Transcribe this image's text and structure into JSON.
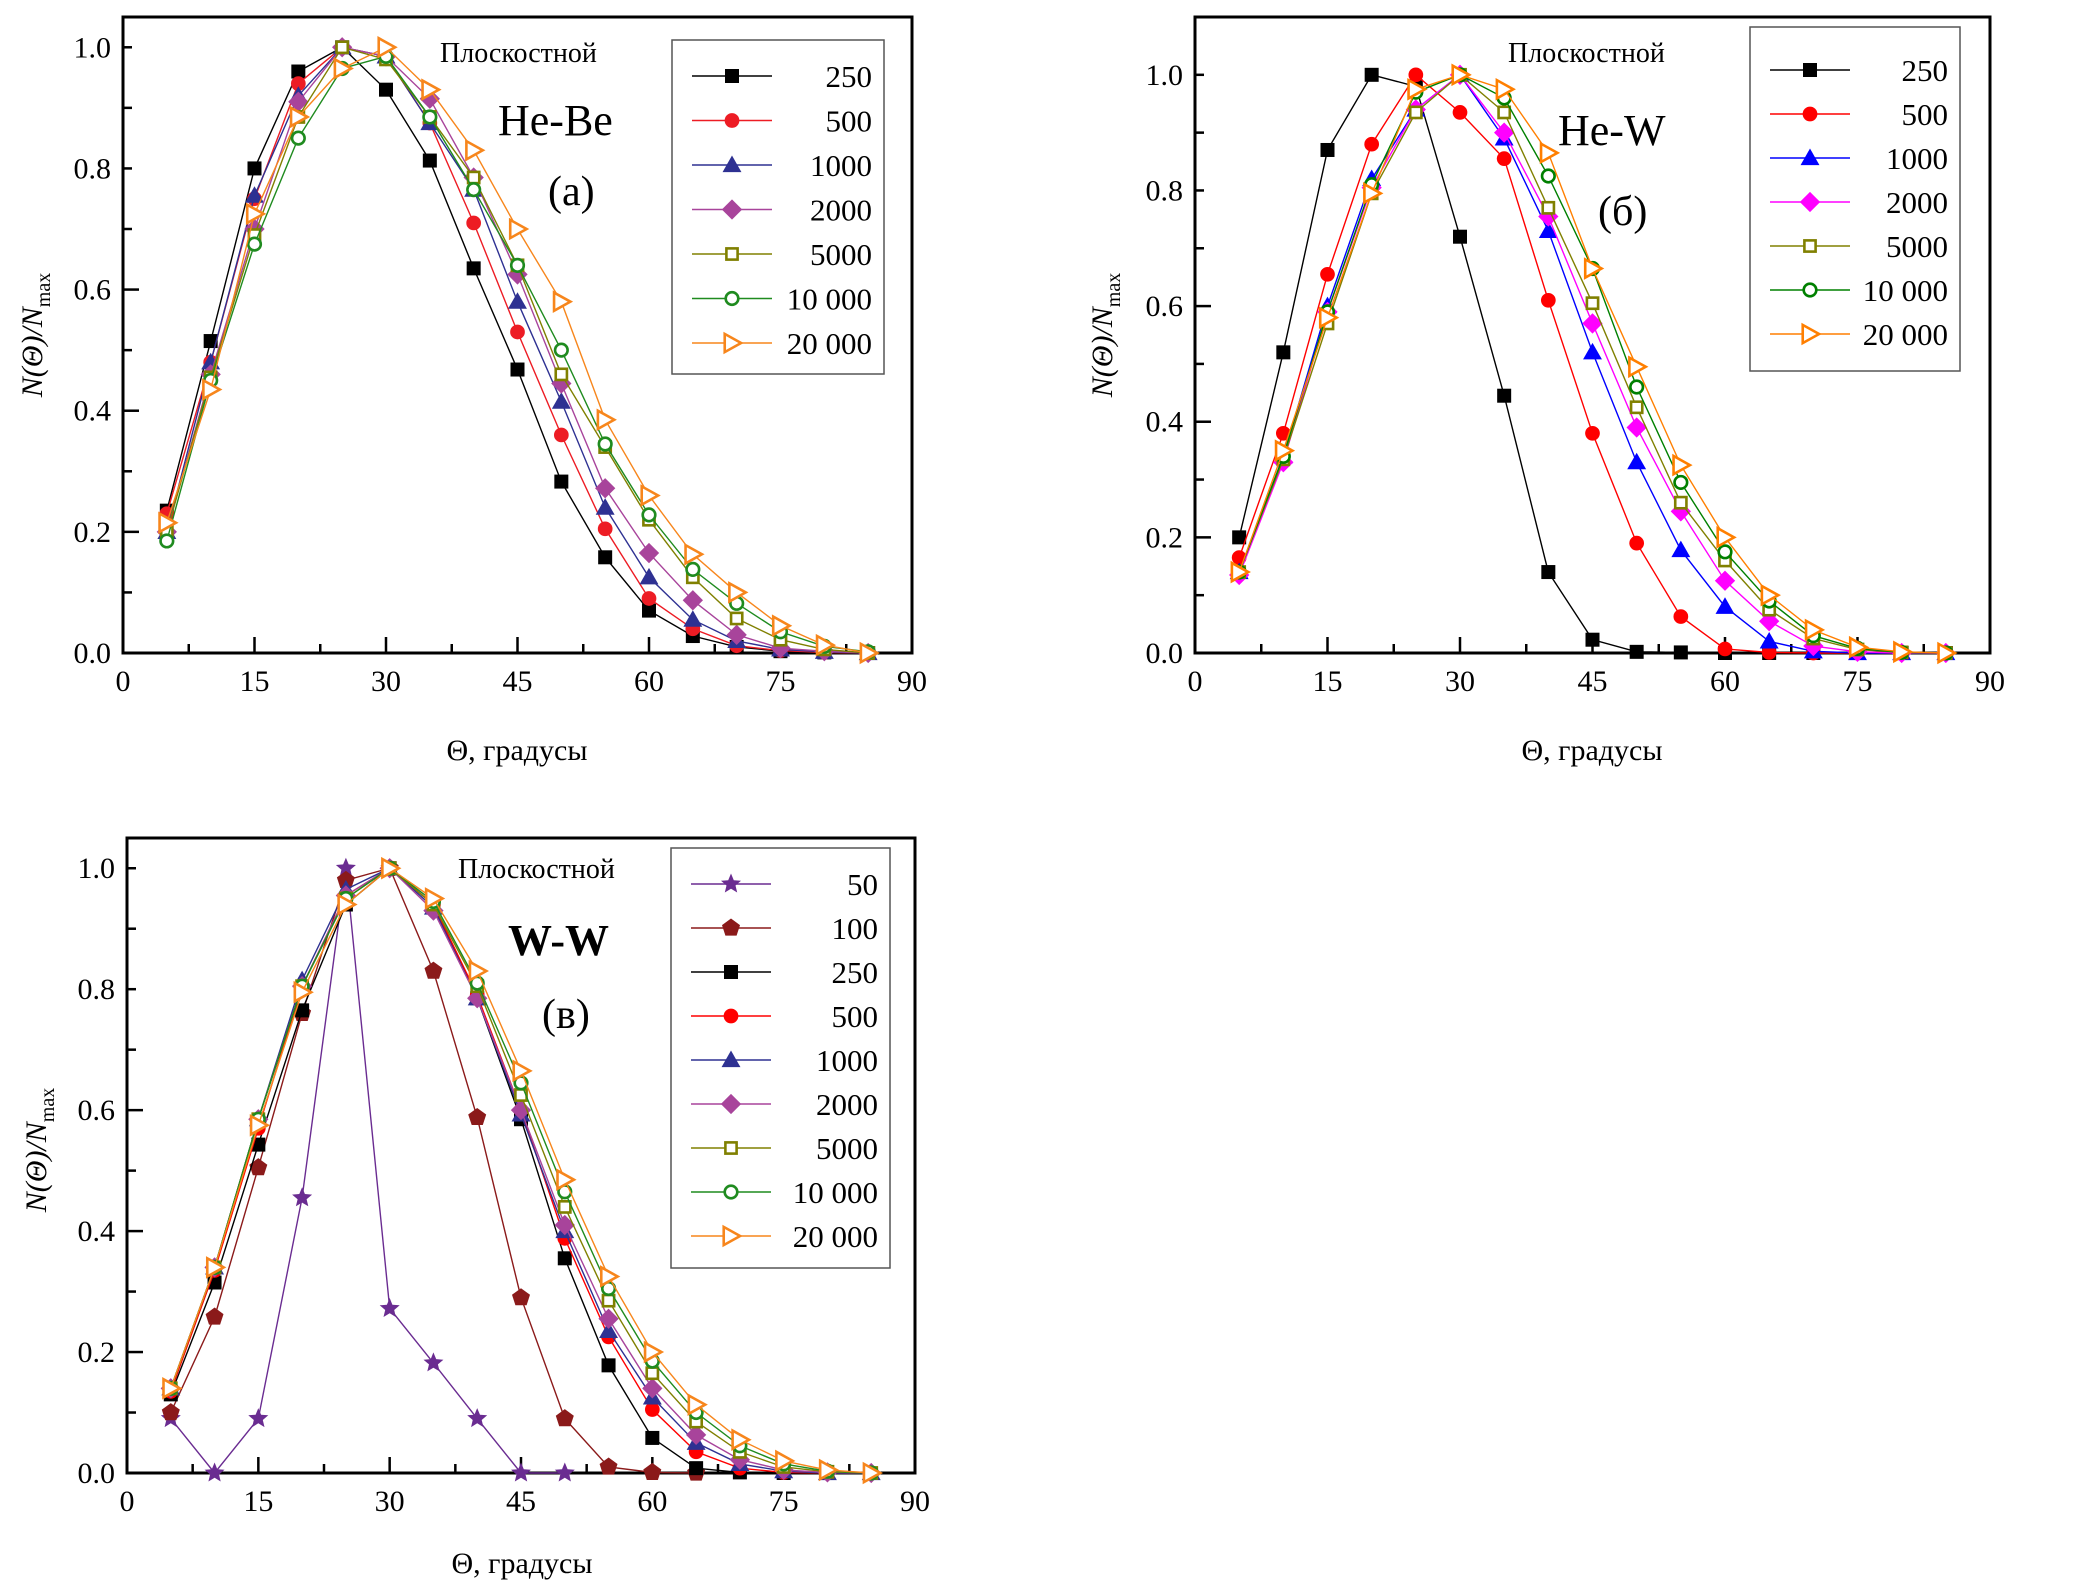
{
  "chart_data": [
    {
      "type": "line",
      "panel": "(a)",
      "system": "He-Be",
      "annotation": "Плоскостной",
      "xlabel": "Θ, градусы",
      "ylabel_main": "N(Θ)/N",
      "ylabel_sub": "max",
      "xlim": [
        0,
        90
      ],
      "ylim": [
        0,
        1.05
      ],
      "xticks": [
        0,
        15,
        30,
        45,
        60,
        75,
        90
      ],
      "yticks": [
        0.0,
        0.2,
        0.4,
        0.6,
        0.8,
        1.0
      ],
      "grid": false,
      "legend_position": "top-right",
      "x": [
        5,
        10,
        15,
        20,
        25,
        30,
        35,
        40,
        45,
        50,
        55,
        60,
        65,
        70,
        75,
        80,
        85
      ],
      "series": [
        {
          "name": "250",
          "color": "#000000",
          "marker": "square-filled",
          "values": [
            0.235,
            0.515,
            0.8,
            0.96,
            1.0,
            0.93,
            0.813,
            0.635,
            0.468,
            0.283,
            0.158,
            0.07,
            0.028,
            0.01,
            0.003,
            0.001,
            0.0
          ]
        },
        {
          "name": "500",
          "color": "#ed1c24",
          "marker": "circle-filled",
          "values": [
            0.23,
            0.48,
            0.75,
            0.94,
            1.0,
            0.985,
            0.875,
            0.71,
            0.53,
            0.36,
            0.205,
            0.09,
            0.04,
            0.012,
            0.004,
            0.001,
            0.0
          ]
        },
        {
          "name": "1000",
          "color": "#2e3192",
          "marker": "triangle-up-filled",
          "values": [
            0.2,
            0.48,
            0.755,
            0.92,
            1.0,
            0.985,
            0.875,
            0.765,
            0.58,
            0.415,
            0.24,
            0.125,
            0.055,
            0.02,
            0.006,
            0.002,
            0.0
          ]
        },
        {
          "name": "2000",
          "color": "#a8449b",
          "marker": "diamond-filled",
          "values": [
            0.2,
            0.46,
            0.7,
            0.91,
            1.0,
            0.985,
            0.915,
            0.785,
            0.625,
            0.445,
            0.272,
            0.165,
            0.087,
            0.03,
            0.008,
            0.003,
            0.0
          ]
        },
        {
          "name": "5000",
          "color": "#808000",
          "marker": "square-open",
          "values": [
            0.2,
            0.455,
            0.69,
            0.885,
            1.0,
            0.98,
            0.885,
            0.785,
            0.64,
            0.46,
            0.34,
            0.22,
            0.125,
            0.057,
            0.022,
            0.006,
            0.0
          ]
        },
        {
          "name": "10 000",
          "color": "#1f8b1f",
          "marker": "circle-open",
          "values": [
            0.185,
            0.45,
            0.675,
            0.85,
            0.965,
            0.985,
            0.885,
            0.765,
            0.64,
            0.5,
            0.345,
            0.228,
            0.138,
            0.082,
            0.035,
            0.011,
            0.002
          ]
        },
        {
          "name": "20 000",
          "color": "#f7861c",
          "marker": "triangle-right-open",
          "values": [
            0.215,
            0.435,
            0.725,
            0.885,
            0.965,
            1.0,
            0.93,
            0.83,
            0.7,
            0.58,
            0.385,
            0.26,
            0.163,
            0.1,
            0.045,
            0.013,
            0.0
          ]
        }
      ]
    },
    {
      "type": "line",
      "panel": "(б)",
      "system": "He-W",
      "annotation": "Плоскостной",
      "xlabel": "Θ, градусы",
      "ylabel_main": "N(Θ)/N",
      "ylabel_sub": "max",
      "xlim": [
        0,
        90
      ],
      "ylim": [
        0,
        1.1
      ],
      "xticks": [
        0,
        15,
        30,
        45,
        60,
        75,
        90
      ],
      "yticks": [
        0.0,
        0.2,
        0.4,
        0.6,
        0.8,
        1.0
      ],
      "grid": false,
      "legend_position": "top-right",
      "x": [
        5,
        10,
        15,
        20,
        25,
        30,
        35,
        40,
        45,
        50,
        55,
        60,
        65,
        70,
        75,
        80,
        85
      ],
      "series": [
        {
          "name": "250",
          "color": "#000000",
          "marker": "square-filled",
          "values": [
            0.2,
            0.52,
            0.87,
            1.0,
            0.98,
            0.72,
            0.445,
            0.14,
            0.023,
            0.002,
            0.001,
            0.0,
            0.0,
            0.0,
            0.0,
            0.0,
            0.0
          ]
        },
        {
          "name": "500",
          "color": "#ff0000",
          "marker": "circle-filled",
          "values": [
            0.165,
            0.38,
            0.655,
            0.88,
            1.0,
            0.935,
            0.855,
            0.61,
            0.38,
            0.19,
            0.063,
            0.007,
            0.001,
            0.0,
            0.0,
            0.0,
            0.0
          ]
        },
        {
          "name": "1000",
          "color": "#0000ff",
          "marker": "triangle-up-filled",
          "values": [
            0.14,
            0.34,
            0.6,
            0.82,
            0.94,
            1.0,
            0.89,
            0.73,
            0.52,
            0.33,
            0.178,
            0.08,
            0.02,
            0.003,
            0.0,
            0.0,
            0.0
          ]
        },
        {
          "name": "2000",
          "color": "#ff00ff",
          "marker": "diamond-filled",
          "values": [
            0.135,
            0.33,
            0.59,
            0.805,
            0.94,
            1.0,
            0.9,
            0.755,
            0.57,
            0.39,
            0.245,
            0.125,
            0.055,
            0.012,
            0.002,
            0.0,
            0.0
          ]
        },
        {
          "name": "5000",
          "color": "#808000",
          "marker": "square-open",
          "values": [
            0.14,
            0.335,
            0.57,
            0.795,
            0.935,
            1.0,
            0.935,
            0.77,
            0.605,
            0.425,
            0.26,
            0.16,
            0.075,
            0.025,
            0.006,
            0.001,
            0.0
          ]
        },
        {
          "name": "10 000",
          "color": "#008000",
          "marker": "circle-open",
          "values": [
            0.14,
            0.34,
            0.59,
            0.81,
            0.97,
            1.0,
            0.96,
            0.825,
            0.665,
            0.46,
            0.295,
            0.175,
            0.09,
            0.03,
            0.008,
            0.001,
            0.0
          ]
        },
        {
          "name": "20 000",
          "color": "#ff7f00",
          "marker": "triangle-right-open",
          "values": [
            0.14,
            0.35,
            0.58,
            0.795,
            0.975,
            1.0,
            0.975,
            0.865,
            0.665,
            0.495,
            0.325,
            0.2,
            0.1,
            0.04,
            0.01,
            0.002,
            0.0
          ]
        }
      ]
    },
    {
      "type": "line",
      "panel": "(в)",
      "system": "W-W",
      "annotation": "Плоскостной",
      "xlabel": "Θ, градусы",
      "ylabel_main": "N(Θ)/N",
      "ylabel_sub": "max",
      "xlim": [
        0,
        90
      ],
      "ylim": [
        0,
        1.05
      ],
      "xticks": [
        0,
        15,
        30,
        45,
        60,
        75,
        90
      ],
      "yticks": [
        0.0,
        0.2,
        0.4,
        0.6,
        0.8,
        1.0
      ],
      "grid": false,
      "legend_position": "top-right",
      "x": [
        5,
        10,
        15,
        20,
        25,
        30,
        35,
        40,
        45,
        50,
        55,
        60,
        65,
        70,
        75,
        80,
        85
      ],
      "series": [
        {
          "name": "50",
          "color": "#6a2c91",
          "marker": "star-filled",
          "values": [
            0.09,
            0.0,
            0.09,
            0.455,
            1.0,
            0.272,
            0.182,
            0.09,
            0.0,
            0.0,
            null,
            null,
            null,
            null,
            null,
            null,
            null
          ]
        },
        {
          "name": "100",
          "color": "#8b1a1a",
          "marker": "pentagon-filled",
          "values": [
            0.1,
            0.258,
            0.505,
            0.76,
            0.98,
            1.0,
            0.83,
            0.588,
            0.29,
            0.09,
            0.01,
            0.001,
            0.0,
            null,
            null,
            null,
            null
          ]
        },
        {
          "name": "250",
          "color": "#000000",
          "marker": "square-filled",
          "values": [
            0.13,
            0.315,
            0.543,
            0.765,
            0.94,
            1.0,
            0.94,
            0.785,
            0.585,
            0.355,
            0.178,
            0.058,
            0.008,
            0.001,
            0.0,
            null,
            null
          ]
        },
        {
          "name": "500",
          "color": "#ff0000",
          "marker": "circle-filled",
          "values": [
            0.135,
            0.335,
            0.57,
            0.805,
            0.955,
            1.0,
            0.94,
            0.79,
            0.6,
            0.388,
            0.225,
            0.105,
            0.035,
            0.008,
            0.001,
            0.0,
            null
          ]
        },
        {
          "name": "1000",
          "color": "#2e3192",
          "marker": "triangle-up-filled",
          "values": [
            0.14,
            0.34,
            0.585,
            0.815,
            0.965,
            1.0,
            0.935,
            0.785,
            0.593,
            0.4,
            0.235,
            0.125,
            0.05,
            0.015,
            0.003,
            0.0,
            0.0
          ]
        },
        {
          "name": "2000",
          "color": "#a8449b",
          "marker": "diamond-filled",
          "values": [
            0.14,
            0.34,
            0.585,
            0.805,
            0.955,
            1.0,
            0.93,
            0.785,
            0.6,
            0.41,
            0.255,
            0.14,
            0.063,
            0.022,
            0.005,
            0.001,
            0.0
          ]
        },
        {
          "name": "5000",
          "color": "#808000",
          "marker": "square-open",
          "values": [
            0.14,
            0.34,
            0.585,
            0.805,
            0.95,
            1.0,
            0.94,
            0.805,
            0.625,
            0.44,
            0.285,
            0.165,
            0.085,
            0.035,
            0.01,
            0.002,
            0.0
          ]
        },
        {
          "name": "10 000",
          "color": "#1f8b1f",
          "marker": "circle-open",
          "values": [
            0.14,
            0.34,
            0.585,
            0.805,
            0.95,
            1.0,
            0.945,
            0.81,
            0.645,
            0.465,
            0.305,
            0.185,
            0.1,
            0.045,
            0.015,
            0.003,
            0.0
          ]
        },
        {
          "name": "20 000",
          "color": "#f7861c",
          "marker": "triangle-right-open",
          "values": [
            0.14,
            0.34,
            0.575,
            0.795,
            0.94,
            1.0,
            0.95,
            0.83,
            0.665,
            0.485,
            0.325,
            0.2,
            0.113,
            0.055,
            0.02,
            0.005,
            0.0
          ]
        }
      ]
    }
  ]
}
